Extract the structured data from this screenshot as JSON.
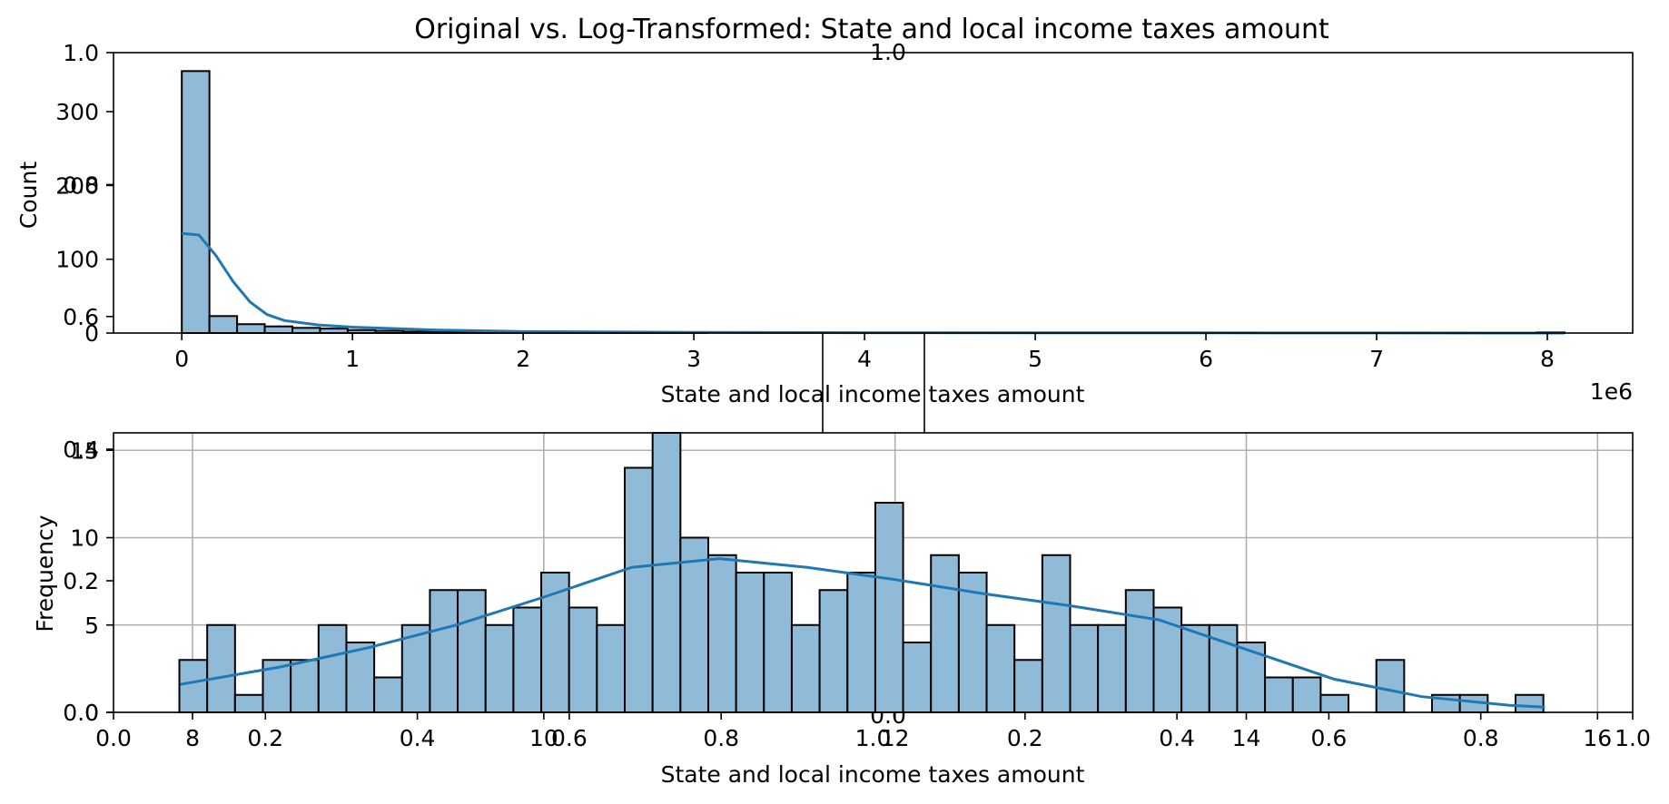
{
  "figure_title": "Original vs. Log-Transformed: State and local income taxes amount",
  "colors": {
    "bar_fill": "#8fbbd9",
    "bar_edge": "#000000",
    "kde": "#1f77b4",
    "grid": "#b0b0b0"
  },
  "overlay": {
    "left_ticks": [
      "0.6",
      "0.8",
      "1.0"
    ],
    "top_label": "1.0",
    "bottom_ticks": [
      "0.0",
      "0.2",
      "0.4",
      "0.6",
      "0.8",
      "1.0",
      "0.0",
      "0.2",
      "0.4",
      "0.6",
      "0.8",
      "1.0"
    ],
    "bottom_left_ticks": [
      "0.0",
      "0.2",
      "0.4"
    ],
    "bottom_center_label": "0.0"
  },
  "chart_data": [
    {
      "type": "bar",
      "kind": "histogram",
      "title": "",
      "xlabel": "State and local income taxes amount",
      "ylabel": "Count",
      "x_offset_label": "1e6",
      "xlim": [
        -0.4,
        8.5
      ],
      "ylim": [
        0,
        380
      ],
      "xticks": [
        0,
        1,
        2,
        3,
        4,
        5,
        6,
        7,
        8
      ],
      "yticks": [
        0,
        100,
        200,
        300
      ],
      "bin_width": 0.162,
      "bins_start": 0,
      "counts": [
        355,
        23,
        12,
        9,
        7,
        6,
        4,
        3,
        2,
        2,
        2,
        1,
        1,
        1,
        1,
        1,
        1,
        1,
        1,
        0,
        0,
        0,
        0,
        0,
        0,
        0,
        0,
        0,
        0,
        0,
        0,
        0,
        0,
        0,
        0,
        0,
        0,
        0,
        0,
        0,
        0,
        0,
        0,
        0,
        0,
        0,
        0,
        0,
        0,
        1
      ],
      "grid": false,
      "kde": {
        "x": [
          0,
          0.1,
          0.2,
          0.3,
          0.4,
          0.5,
          0.6,
          0.8,
          1.0,
          1.5,
          2.0,
          3.0,
          4.0,
          5.0,
          6.0,
          7.0,
          8.1
        ],
        "y": [
          135,
          133,
          105,
          70,
          42,
          25,
          17,
          11,
          8,
          4,
          2,
          1,
          0.5,
          0.3,
          0.2,
          0.1,
          0.05
        ]
      }
    },
    {
      "type": "bar",
      "kind": "histogram",
      "title": "",
      "xlabel": "State and local income taxes amount",
      "ylabel": "Frequency",
      "xlim": [
        7.55,
        16.2
      ],
      "ylim": [
        0,
        16
      ],
      "xticks": [
        8,
        10,
        12,
        14,
        16
      ],
      "yticks": [
        0,
        5,
        10,
        15
      ],
      "bins_start": 7.925,
      "bin_width": 0.1585,
      "counts": [
        3,
        5,
        1,
        3,
        3,
        5,
        4,
        2,
        5,
        7,
        7,
        5,
        6,
        8,
        6,
        5,
        14,
        16,
        10,
        9,
        8,
        8,
        5,
        7,
        8,
        12,
        4,
        9,
        8,
        5,
        3,
        9,
        5,
        5,
        7,
        6,
        5,
        5,
        4,
        2,
        2,
        1,
        0,
        3,
        0,
        1,
        1,
        0,
        1
      ],
      "grid": true,
      "kde": {
        "x": [
          7.93,
          8.5,
          9.0,
          9.5,
          10.0,
          10.5,
          11.0,
          11.5,
          12.0,
          12.5,
          13.0,
          13.5,
          14.0,
          14.5,
          15.0,
          15.5,
          15.7
        ],
        "y": [
          1.6,
          2.6,
          3.7,
          5.0,
          6.6,
          8.3,
          8.8,
          8.3,
          7.6,
          6.8,
          6.1,
          5.3,
          3.6,
          1.9,
          0.9,
          0.4,
          0.3
        ]
      }
    }
  ]
}
